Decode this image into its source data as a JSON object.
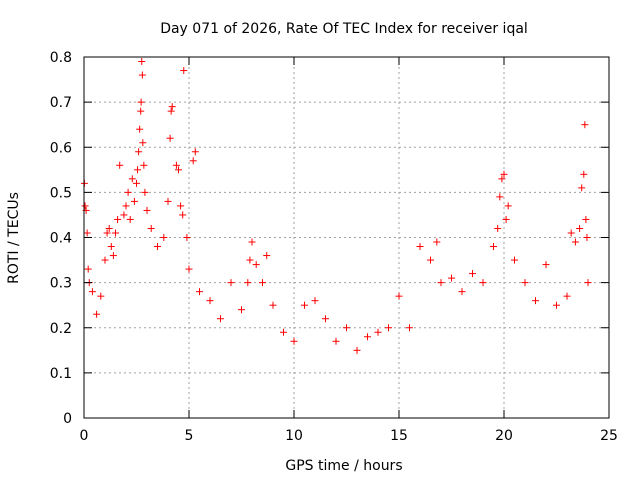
{
  "chart_data": {
    "type": "scatter",
    "title": "Day 071 of 2026, Rate Of TEC Index for receiver iqal",
    "xlabel": "GPS time / hours",
    "ylabel": "ROTI / TECUs",
    "xlim": [
      0,
      25
    ],
    "ylim": [
      0,
      0.8
    ],
    "x_ticks": [
      0,
      5,
      10,
      15,
      20,
      25
    ],
    "y_ticks": [
      0,
      0.1,
      0.2,
      0.3,
      0.4,
      0.5,
      0.6,
      0.7,
      0.8
    ],
    "x_tick_labels": [
      "0",
      "5",
      "10",
      "15",
      "20",
      "25"
    ],
    "y_tick_labels": [
      "0",
      "0.1",
      "0.2",
      "0.3",
      "0.4",
      "0.5",
      "0.6",
      "0.7",
      "0.8"
    ],
    "grid": true,
    "marker": "+",
    "color": "#ff0000",
    "series": [
      {
        "name": "ROTI",
        "points": [
          [
            0.02,
            0.52
          ],
          [
            0.05,
            0.47
          ],
          [
            0.1,
            0.46
          ],
          [
            0.15,
            0.41
          ],
          [
            0.2,
            0.33
          ],
          [
            0.25,
            0.3
          ],
          [
            0.4,
            0.28
          ],
          [
            0.6,
            0.23
          ],
          [
            0.8,
            0.27
          ],
          [
            1.0,
            0.35
          ],
          [
            1.1,
            0.41
          ],
          [
            1.2,
            0.42
          ],
          [
            1.3,
            0.38
          ],
          [
            1.4,
            0.36
          ],
          [
            1.5,
            0.41
          ],
          [
            1.6,
            0.44
          ],
          [
            1.7,
            0.56
          ],
          [
            1.9,
            0.45
          ],
          [
            2.0,
            0.47
          ],
          [
            2.1,
            0.5
          ],
          [
            2.2,
            0.44
          ],
          [
            2.3,
            0.53
          ],
          [
            2.4,
            0.48
          ],
          [
            2.5,
            0.52
          ],
          [
            2.55,
            0.55
          ],
          [
            2.6,
            0.59
          ],
          [
            2.65,
            0.64
          ],
          [
            2.7,
            0.68
          ],
          [
            2.72,
            0.7
          ],
          [
            2.75,
            0.79
          ],
          [
            2.78,
            0.76
          ],
          [
            2.8,
            0.61
          ],
          [
            2.85,
            0.56
          ],
          [
            2.9,
            0.5
          ],
          [
            3.0,
            0.46
          ],
          [
            3.2,
            0.42
          ],
          [
            3.5,
            0.38
          ],
          [
            3.8,
            0.4
          ],
          [
            4.0,
            0.48
          ],
          [
            4.1,
            0.62
          ],
          [
            4.15,
            0.68
          ],
          [
            4.2,
            0.69
          ],
          [
            4.4,
            0.56
          ],
          [
            4.5,
            0.55
          ],
          [
            4.6,
            0.47
          ],
          [
            4.7,
            0.45
          ],
          [
            4.75,
            0.77
          ],
          [
            4.9,
            0.4
          ],
          [
            5.0,
            0.33
          ],
          [
            5.2,
            0.57
          ],
          [
            5.3,
            0.59
          ],
          [
            5.5,
            0.28
          ],
          [
            6.0,
            0.26
          ],
          [
            6.5,
            0.22
          ],
          [
            7.0,
            0.3
          ],
          [
            7.5,
            0.24
          ],
          [
            7.8,
            0.3
          ],
          [
            7.9,
            0.35
          ],
          [
            8.0,
            0.39
          ],
          [
            8.2,
            0.34
          ],
          [
            8.5,
            0.3
          ],
          [
            8.7,
            0.36
          ],
          [
            9.0,
            0.25
          ],
          [
            9.5,
            0.19
          ],
          [
            10.0,
            0.17
          ],
          [
            10.5,
            0.25
          ],
          [
            11.0,
            0.26
          ],
          [
            11.5,
            0.22
          ],
          [
            12.0,
            0.17
          ],
          [
            12.5,
            0.2
          ],
          [
            13.0,
            0.15
          ],
          [
            13.5,
            0.18
          ],
          [
            14.0,
            0.19
          ],
          [
            14.5,
            0.2
          ],
          [
            15.0,
            0.27
          ],
          [
            15.5,
            0.2
          ],
          [
            16.0,
            0.38
          ],
          [
            16.5,
            0.35
          ],
          [
            16.8,
            0.39
          ],
          [
            17.0,
            0.3
          ],
          [
            17.5,
            0.31
          ],
          [
            18.0,
            0.28
          ],
          [
            18.5,
            0.32
          ],
          [
            19.0,
            0.3
          ],
          [
            19.5,
            0.38
          ],
          [
            19.7,
            0.42
          ],
          [
            19.8,
            0.49
          ],
          [
            19.9,
            0.53
          ],
          [
            20.0,
            0.54
          ],
          [
            20.1,
            0.44
          ],
          [
            20.2,
            0.47
          ],
          [
            20.5,
            0.35
          ],
          [
            21.0,
            0.3
          ],
          [
            21.5,
            0.26
          ],
          [
            22.0,
            0.34
          ],
          [
            22.5,
            0.25
          ],
          [
            23.0,
            0.27
          ],
          [
            23.2,
            0.41
          ],
          [
            23.4,
            0.39
          ],
          [
            23.6,
            0.42
          ],
          [
            23.7,
            0.51
          ],
          [
            23.8,
            0.54
          ],
          [
            23.85,
            0.65
          ],
          [
            23.9,
            0.44
          ],
          [
            23.95,
            0.4
          ],
          [
            24.0,
            0.3
          ]
        ]
      }
    ]
  }
}
